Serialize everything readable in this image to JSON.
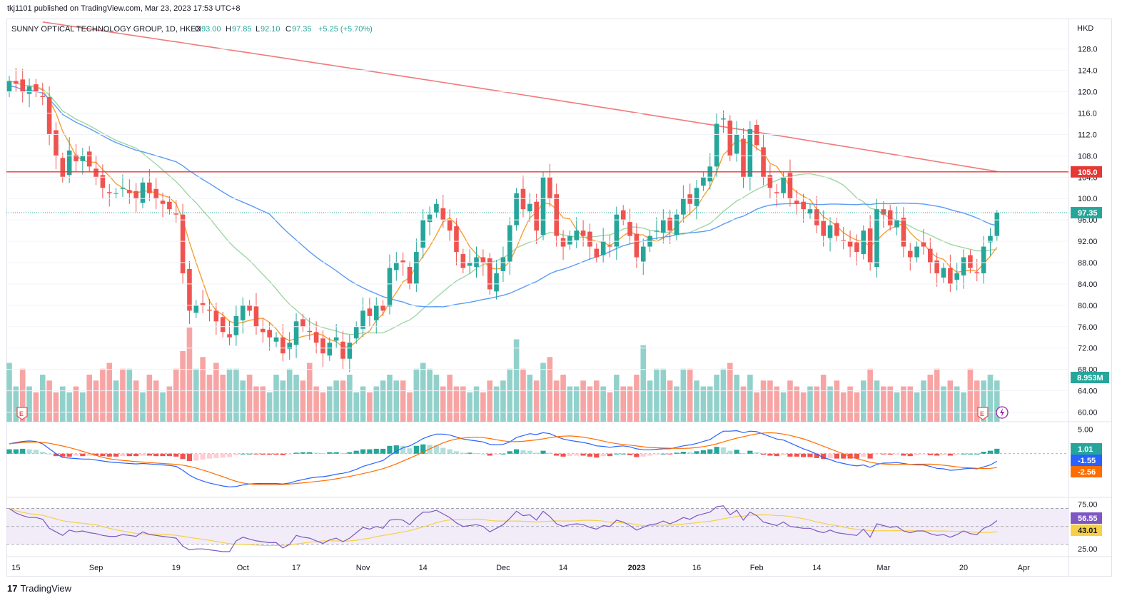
{
  "header": {
    "published": "tkj1101 published on TradingView.com, Mar 23, 2023 17:53 UTC+8",
    "symbol": "SUNNY OPTICAL TECHNOLOGY GROUP, 1D, HKEX",
    "o_label": "O",
    "o_value": "93.00",
    "h_label": "H",
    "h_value": "97.85",
    "l_label": "L",
    "l_value": "92.10",
    "c_label": "C",
    "c_value": "97.35",
    "change": "+5.25 (+5.70%)"
  },
  "footer": {
    "logo_mark": "17",
    "logo_text": "TradingView"
  },
  "colors": {
    "up": "#26a69a",
    "down": "#ef5350",
    "vol_up": "#92d1cb",
    "vol_down": "#f7a5a4",
    "ma_fast": "#f5a032",
    "ma_mid": "#9fd6a4",
    "ma_slow": "#5b9cf6",
    "ma_long": "#f07b7b",
    "macd": "#2962ff",
    "signal": "#ff6d00",
    "rsi": "#7e57c2",
    "rsi_ma": "#f7d046",
    "hline": "#e53935"
  },
  "chart_data": {
    "type": "candlestick",
    "currency": "HKD",
    "price_axis": [
      "128.0",
      "124.0",
      "120.0",
      "116.0",
      "112.0",
      "108.0",
      "104.0",
      "100.0",
      "96.00",
      "92.00",
      "88.00",
      "84.00",
      "80.00",
      "76.00",
      "72.00",
      "68.00",
      "64.00",
      "60.00"
    ],
    "price_range": [
      59.0,
      130.5
    ],
    "x_labels": [
      {
        "label": "15",
        "i": 1
      },
      {
        "label": "Sep",
        "i": 13
      },
      {
        "label": "19",
        "i": 25
      },
      {
        "label": "Oct",
        "i": 35
      },
      {
        "label": "17",
        "i": 43
      },
      {
        "label": "Nov",
        "i": 53
      },
      {
        "label": "14",
        "i": 62
      },
      {
        "label": "Dec",
        "i": 74
      },
      {
        "label": "14",
        "i": 83
      },
      {
        "label": "2023",
        "i": 94
      },
      {
        "label": "16",
        "i": 103
      },
      {
        "label": "Feb",
        "i": 112
      },
      {
        "label": "14",
        "i": 121
      },
      {
        "label": "Mar",
        "i": 131
      },
      {
        "label": "20",
        "i": 143
      },
      {
        "label": "Apr",
        "i": 152
      }
    ],
    "horizontal_line": {
      "value": 105.0,
      "label": "105.0"
    },
    "last_price": {
      "value": 97.35,
      "label": "97.35"
    },
    "volume_label": "8.953M",
    "close": [
      122,
      121.5,
      120,
      121,
      120,
      119,
      112,
      108,
      104,
      109,
      107,
      108,
      106,
      104,
      102,
      101,
      101,
      102,
      101,
      100,
      103,
      101,
      100,
      99,
      98,
      97,
      86,
      79,
      80,
      80,
      79,
      77,
      75,
      74,
      78,
      80,
      79,
      76,
      75,
      74,
      74,
      71,
      73,
      77,
      76,
      75,
      73,
      71,
      73,
      74,
      70,
      73,
      76,
      79,
      78,
      80,
      79,
      87,
      88,
      88,
      84,
      90,
      96,
      97,
      99,
      96,
      94,
      90,
      87,
      88,
      89,
      88,
      83,
      86,
      89,
      95,
      101,
      98,
      99,
      94,
      104,
      100,
      93,
      91,
      93,
      94,
      93,
      91,
      89,
      92,
      91,
      97,
      96,
      93,
      89,
      91,
      93,
      94,
      96,
      94,
      97,
      100,
      99,
      102,
      104,
      106,
      114,
      115,
      108,
      112,
      104,
      113,
      110,
      104,
      102,
      101,
      104,
      100,
      99,
      98,
      98,
      95,
      93,
      95,
      93,
      92,
      91,
      90,
      94,
      88,
      98,
      97,
      95,
      96,
      91,
      89,
      91,
      91,
      88,
      86,
      87,
      84,
      86,
      89,
      87,
      86,
      91,
      93,
      97.35
    ],
    "volume_millions_relative": [
      1.0,
      0.6,
      0.9,
      0.6,
      0.5,
      0.8,
      0.7,
      0.5,
      0.6,
      0.5,
      0.6,
      0.5,
      0.8,
      0.7,
      0.9,
      1.0,
      0.7,
      0.9,
      0.9,
      0.7,
      0.5,
      0.8,
      0.7,
      0.5,
      0.6,
      0.9,
      1.2,
      1.6,
      0.9,
      1.1,
      0.8,
      1.0,
      0.8,
      0.9,
      0.9,
      0.7,
      0.8,
      0.6,
      0.6,
      0.5,
      0.8,
      0.7,
      0.9,
      0.8,
      0.7,
      1.0,
      0.6,
      0.5,
      0.6,
      0.7,
      0.7,
      0.8,
      0.5,
      0.6,
      0.5,
      0.6,
      0.7,
      0.8,
      0.7,
      0.7,
      0.5,
      0.9,
      1.0,
      0.9,
      0.8,
      0.6,
      0.8,
      0.6,
      0.6,
      0.5,
      0.6,
      0.5,
      0.7,
      0.6,
      0.7,
      0.9,
      1.4,
      0.9,
      0.8,
      0.7,
      1.0,
      1.1,
      0.7,
      0.8,
      0.6,
      0.6,
      0.7,
      0.6,
      0.7,
      0.6,
      0.5,
      0.8,
      0.6,
      0.6,
      0.8,
      1.3,
      0.7,
      0.9,
      0.9,
      0.7,
      0.6,
      0.9,
      0.9,
      0.7,
      0.6,
      0.6,
      0.8,
      0.9,
      1.0,
      0.8,
      0.6,
      0.8,
      0.5,
      0.7,
      0.7,
      0.6,
      0.5,
      0.7,
      0.6,
      0.5,
      0.6,
      0.6,
      0.8,
      0.6,
      0.7,
      0.5,
      0.6,
      0.5,
      0.7,
      0.9,
      0.7,
      0.6,
      0.6,
      0.5,
      0.6,
      0.6,
      0.5,
      0.7,
      0.8,
      0.9,
      0.6,
      0.7,
      0.6,
      0.5,
      0.9,
      0.7,
      0.7,
      0.8,
      0.7
    ],
    "volume_up": [
      1,
      1,
      0,
      1,
      0,
      1,
      0,
      0,
      1,
      1,
      0,
      1,
      0,
      0,
      0,
      0,
      1,
      0,
      1,
      0,
      1,
      0,
      0,
      1,
      0,
      0,
      0,
      0,
      1,
      0,
      0,
      0,
      0,
      1,
      1,
      1,
      0,
      0,
      0,
      1,
      1,
      1,
      1,
      1,
      0,
      0,
      0,
      0,
      1,
      1,
      0,
      1,
      1,
      1,
      0,
      1,
      1,
      1,
      1,
      0,
      0,
      1,
      1,
      1,
      1,
      0,
      0,
      0,
      0,
      1,
      1,
      0,
      0,
      1,
      1,
      1,
      1,
      0,
      1,
      0,
      1,
      0,
      0,
      0,
      1,
      1,
      0,
      0,
      0,
      1,
      0,
      1,
      0,
      0,
      0,
      1,
      1,
      1,
      1,
      0,
      1,
      1,
      0,
      1,
      1,
      1,
      1,
      1,
      0,
      1,
      0,
      1,
      0,
      0,
      0,
      0,
      1,
      0,
      0,
      0,
      1,
      0,
      0,
      1,
      0,
      0,
      0,
      0,
      1,
      0,
      1,
      0,
      0,
      1,
      0,
      0,
      1,
      1,
      0,
      0,
      1,
      0,
      1,
      1,
      0,
      0,
      1,
      1,
      1
    ],
    "macd_axis": [
      "5.00"
    ],
    "macd_labels": {
      "hist": "1.01",
      "macd": "-1.55",
      "signal": "-2.56"
    },
    "macd_range": [
      -8.5,
      5.8
    ],
    "macd_hist": [
      0.9,
      0.9,
      1.0,
      0.9,
      0.8,
      0.4,
      0.0,
      -0.5,
      -0.6,
      -0.6,
      -0.4,
      -0.5,
      -0.4,
      -0.4,
      -0.5,
      -0.6,
      -0.6,
      -0.5,
      -0.5,
      -0.5,
      -0.4,
      -0.4,
      -0.5,
      -0.5,
      -0.5,
      -0.6,
      -1.1,
      -1.5,
      -1.4,
      -1.2,
      -1.0,
      -0.9,
      -0.8,
      -0.7,
      -0.3,
      0.0,
      0.0,
      -0.1,
      -0.2,
      -0.2,
      -0.2,
      -0.3,
      -0.1,
      0.2,
      0.3,
      0.3,
      0.2,
      0.1,
      0.3,
      0.3,
      0.1,
      0.3,
      0.6,
      0.9,
      0.9,
      1.0,
      1.0,
      1.6,
      1.7,
      1.6,
      1.1,
      1.6,
      1.9,
      1.8,
      1.7,
      1.2,
      0.9,
      0.5,
      0.2,
      0.2,
      0.1,
      0.0,
      -0.4,
      -0.2,
      0.0,
      0.5,
      0.9,
      0.7,
      0.6,
      0.2,
      0.6,
      0.2,
      -0.4,
      -0.6,
      -0.5,
      -0.4,
      -0.4,
      -0.6,
      -0.8,
      -0.5,
      -0.5,
      0.0,
      0.0,
      -0.3,
      -0.7,
      -0.6,
      -0.4,
      -0.2,
      0.0,
      -0.1,
      0.2,
      0.4,
      0.3,
      0.5,
      0.7,
      0.9,
      1.4,
      1.3,
      0.6,
      0.8,
      0.1,
      0.6,
      0.3,
      -0.2,
      -0.4,
      -0.5,
      -0.3,
      -0.6,
      -0.6,
      -0.7,
      -0.7,
      -0.9,
      -1.1,
      -0.9,
      -1.0,
      -1.0,
      -1.0,
      -1.0,
      -0.6,
      -1.0,
      -0.1,
      -0.1,
      -0.2,
      -0.1,
      -0.4,
      -0.5,
      -0.3,
      -0.2,
      -0.3,
      -0.4,
      -0.3,
      -0.4,
      -0.2,
      0.0,
      0.0,
      0.0,
      0.4,
      0.6,
      1.01
    ],
    "macd_line": [
      2.0,
      2.3,
      2.5,
      2.6,
      2.5,
      2.0,
      1.0,
      0.0,
      -0.8,
      -0.9,
      -1.0,
      -1.1,
      -1.1,
      -1.3,
      -1.5,
      -1.7,
      -1.8,
      -1.9,
      -2.0,
      -2.1,
      -2.0,
      -2.1,
      -2.2,
      -2.3,
      -2.4,
      -2.6,
      -3.4,
      -4.4,
      -5.1,
      -5.6,
      -6.0,
      -6.3,
      -6.6,
      -6.8,
      -6.7,
      -6.4,
      -6.2,
      -6.1,
      -6.1,
      -6.1,
      -6.1,
      -6.2,
      -6.0,
      -5.6,
      -5.3,
      -5.0,
      -4.8,
      -4.7,
      -4.5,
      -4.2,
      -4.0,
      -3.7,
      -3.2,
      -2.6,
      -2.2,
      -1.8,
      -1.4,
      -0.4,
      0.5,
      1.2,
      1.6,
      2.3,
      3.1,
      3.6,
      4.0,
      4.0,
      3.8,
      3.4,
      3.0,
      2.8,
      2.6,
      2.4,
      1.9,
      1.8,
      1.9,
      2.4,
      3.3,
      3.7,
      4.1,
      3.9,
      4.3,
      4.1,
      3.5,
      3.0,
      2.7,
      2.5,
      2.3,
      2.0,
      1.6,
      1.5,
      1.3,
      1.5,
      1.6,
      1.4,
      1.0,
      0.8,
      0.8,
      0.9,
      1.0,
      1.0,
      1.3,
      1.6,
      1.8,
      2.1,
      2.5,
      2.9,
      3.8,
      4.6,
      4.6,
      4.7,
      4.3,
      4.6,
      4.5,
      4.0,
      3.5,
      3.0,
      2.8,
      2.2,
      1.6,
      1.0,
      0.5,
      -0.1,
      -0.8,
      -1.2,
      -1.7,
      -2.0,
      -2.3,
      -2.5,
      -2.3,
      -2.8,
      -2.2,
      -1.9,
      -1.9,
      -1.8,
      -2.0,
      -2.2,
      -2.3,
      -2.3,
      -2.6,
      -3.0,
      -3.1,
      -3.4,
      -3.3,
      -3.1,
      -3.0,
      -3.1,
      -2.7,
      -2.3,
      -1.55
    ],
    "rsi_axis": [
      "75.00",
      "25.00"
    ],
    "rsi_labels": {
      "rsi": "56.55",
      "rsi_ma": "43.01"
    },
    "rsi_range": [
      18,
      80
    ],
    "rsi_band": [
      30,
      70
    ],
    "rsi": [
      70,
      65,
      62,
      60,
      60,
      58,
      48,
      44,
      40,
      46,
      44,
      45,
      43,
      42,
      40,
      39,
      39,
      41,
      40,
      39,
      44,
      41,
      40,
      39,
      38,
      37,
      28,
      24,
      25,
      25,
      24,
      23,
      22,
      22,
      34,
      38,
      36,
      34,
      33,
      32,
      32,
      26,
      30,
      40,
      38,
      37,
      34,
      31,
      35,
      37,
      33,
      37,
      43,
      49,
      47,
      50,
      48,
      57,
      58,
      57,
      52,
      60,
      66,
      66,
      68,
      64,
      60,
      54,
      50,
      51,
      52,
      50,
      44,
      48,
      52,
      59,
      67,
      62,
      63,
      57,
      67,
      61,
      53,
      50,
      52,
      53,
      52,
      49,
      47,
      51,
      50,
      57,
      55,
      51,
      46,
      49,
      52,
      53,
      56,
      53,
      56,
      60,
      58,
      62,
      64,
      66,
      72,
      73,
      63,
      68,
      57,
      66,
      62,
      55,
      53,
      51,
      55,
      50,
      49,
      48,
      48,
      45,
      43,
      46,
      43,
      42,
      41,
      40,
      47,
      38,
      53,
      51,
      49,
      50,
      45,
      43,
      45,
      45,
      42,
      40,
      41,
      38,
      41,
      45,
      42,
      41,
      48,
      51,
      56.55
    ]
  }
}
